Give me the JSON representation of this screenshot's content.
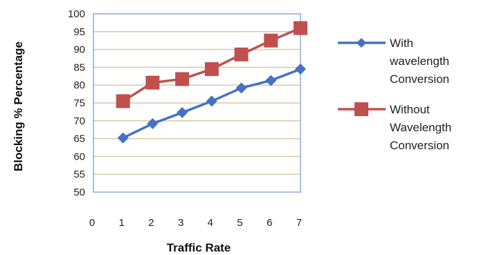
{
  "chart_data": {
    "type": "line",
    "title": "",
    "xlabel": "Traffic Rate",
    "ylabel": "Blocking % Percentage",
    "x_ticks": [
      0,
      1,
      2,
      3,
      4,
      5,
      6,
      7
    ],
    "y_ticks": [
      50,
      55,
      60,
      65,
      70,
      75,
      80,
      85,
      90,
      95,
      100
    ],
    "xlim": [
      0,
      7
    ],
    "ylim": [
      50,
      100
    ],
    "x": [
      1,
      2,
      3,
      4,
      5,
      6,
      7
    ],
    "grid": "horizontal",
    "legend_position": "right",
    "series": [
      {
        "name": "With wavelength Conversion",
        "name_lines": [
          "With",
          "wavelength",
          "Conversion"
        ],
        "marker": "diamond",
        "color": "#4472C4",
        "values": [
          65.2,
          69.2,
          72.3,
          75.5,
          79.2,
          81.3,
          84.5
        ]
      },
      {
        "name": "Without Wavelength Conversion",
        "name_lines": [
          "Without",
          "Wavelength",
          "Conversion"
        ],
        "marker": "square",
        "color": "#C0504D",
        "values": [
          75.5,
          80.7,
          81.7,
          84.5,
          88.6,
          92.5,
          96.0
        ]
      }
    ],
    "colors": {
      "grid": "#d9c9a8",
      "plot_border": "#8faadc",
      "axis": "#888888"
    }
  }
}
